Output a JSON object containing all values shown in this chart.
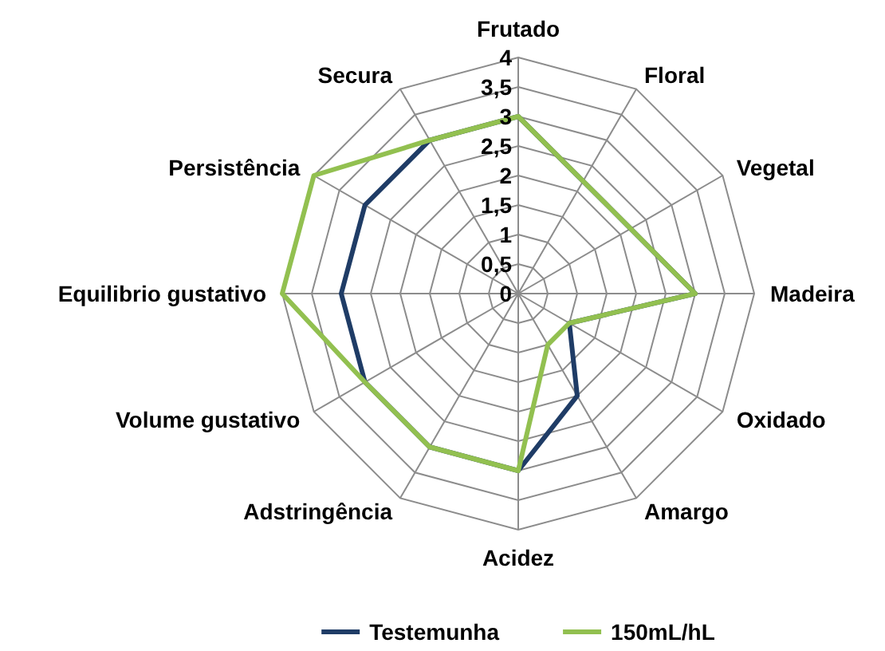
{
  "chart_data": {
    "type": "radar",
    "categories": [
      "Frutado",
      "Floral",
      "Vegetal",
      "Madeira",
      "Oxidado",
      "Amargo",
      "Acidez",
      "Adstringência",
      "Volume gustativo",
      "Equilibrio gustativo",
      "Persistência",
      "Secura"
    ],
    "series": [
      {
        "name": "Testemunha",
        "color": "#1f3c66",
        "values": [
          3,
          2.2,
          2.2,
          3,
          1,
          2,
          3,
          3,
          3,
          3,
          3,
          3
        ]
      },
      {
        "name": "150mL/hL",
        "color": "#92c050",
        "values": [
          3,
          2.2,
          2.2,
          3,
          1,
          1,
          3,
          3,
          3,
          4,
          4,
          3
        ]
      }
    ],
    "ylim": [
      0,
      4
    ],
    "yticks": [
      0,
      {
        "value": 0.5,
        "label": "0,5"
      },
      1,
      {
        "value": 1.5,
        "label": "1,5"
      },
      2,
      {
        "value": 2.5,
        "label": "2,5"
      },
      3,
      {
        "value": 3.5,
        "label": "3,5"
      },
      4
    ],
    "grid": true,
    "legend": "bottom"
  }
}
